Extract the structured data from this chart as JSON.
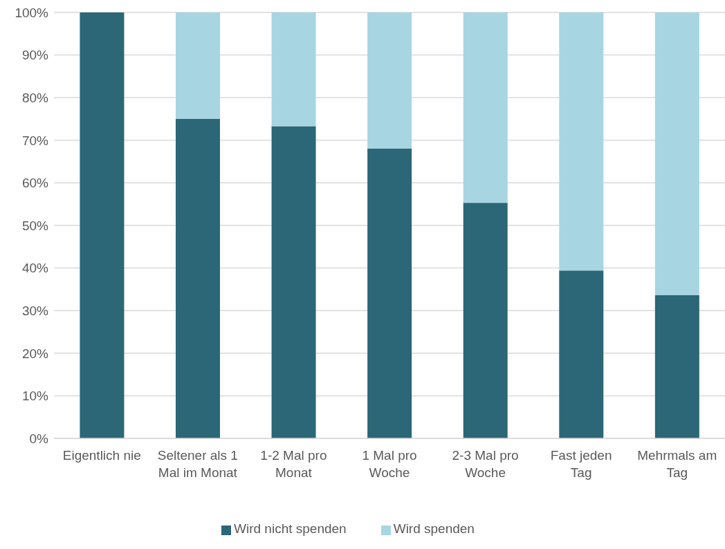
{
  "chart_data": {
    "type": "bar",
    "stacked": true,
    "categories": [
      "Eigentlich nie",
      "Seltener als 1 Mal im Monat",
      "1-2 Mal pro Monat",
      "1 Mal pro Woche",
      "2-3 Mal pro Woche",
      "Fast jeden Tag",
      "Mehrmals am Tag"
    ],
    "series": [
      {
        "name": "Wird nicht spenden",
        "color": "#2b6777",
        "values": [
          100,
          75,
          73.3,
          68,
          55.3,
          39.4,
          33.6
        ]
      },
      {
        "name": "Wird spenden",
        "color": "#a8d5e2",
        "values": [
          0,
          25,
          26.7,
          32,
          44.7,
          60.6,
          66.4
        ]
      }
    ],
    "ylim": [
      0,
      100
    ],
    "yticks": [
      {
        "value": 0,
        "label": "0%"
      },
      {
        "value": 10,
        "label": "10%"
      },
      {
        "value": 20,
        "label": "20%"
      },
      {
        "value": 30,
        "label": "30%"
      },
      {
        "value": 40,
        "label": "40%"
      },
      {
        "value": 50,
        "label": "50%"
      },
      {
        "value": 60,
        "label": "60%"
      },
      {
        "value": 70,
        "label": "70%"
      },
      {
        "value": 80,
        "label": "80%"
      },
      {
        "value": 90,
        "label": "90%"
      },
      {
        "value": 100,
        "label": "100%"
      }
    ],
    "grid": "y",
    "legend": "bottom"
  }
}
